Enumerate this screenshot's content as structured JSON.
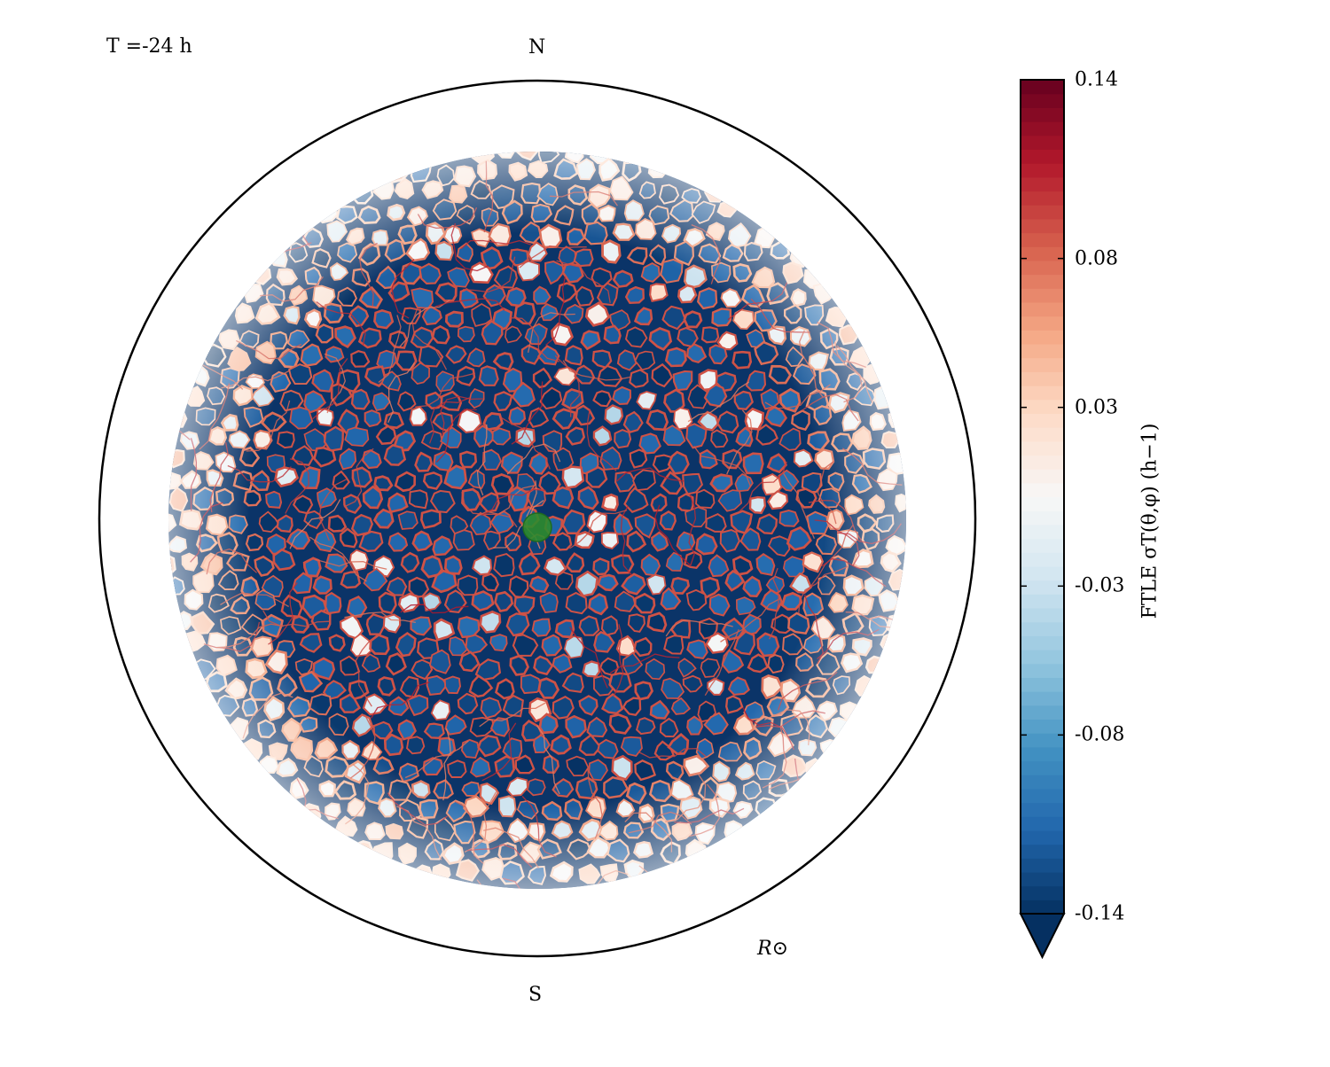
{
  "annotations": {
    "time_label": "T =-24 h",
    "north_label": "N",
    "south_label": "S",
    "radius_label": "R⊙"
  },
  "colorbar": {
    "label": "FTLE σT(θ,φ) (h−1)",
    "ticks": [
      "0.14",
      "0.08",
      "0.03",
      "-0.03",
      "-0.08",
      "-0.14"
    ],
    "tick_values": [
      0.14,
      0.08,
      0.03,
      -0.03,
      -0.08,
      -0.14
    ],
    "range": [
      -0.14,
      0.14
    ],
    "extend": "min",
    "colormap": "RdBu_r",
    "colors": [
      "#053061",
      "#2166ac",
      "#4393c3",
      "#92c5de",
      "#d1e5f0",
      "#f7f7f7",
      "#fddbc7",
      "#f4a582",
      "#d6604d",
      "#b2182b",
      "#67001f"
    ]
  },
  "chart_data": {
    "type": "heatmap",
    "projection": "orthographic solar disk",
    "quantity": "FTLE",
    "T_hours": -24,
    "value_range": [
      -0.14,
      0.14
    ],
    "pattern": "cellular network of positive FTLE ridges (red) surrounding negative FTLE cell interiors (dark blue); ridges fade toward the limb",
    "marker": {
      "shape": "circle",
      "color": "#2e8b2e",
      "location": "disk center"
    },
    "limb_circle": true,
    "ticks": [
      0.14,
      0.08,
      0.03,
      -0.03,
      -0.08,
      -0.14
    ]
  }
}
